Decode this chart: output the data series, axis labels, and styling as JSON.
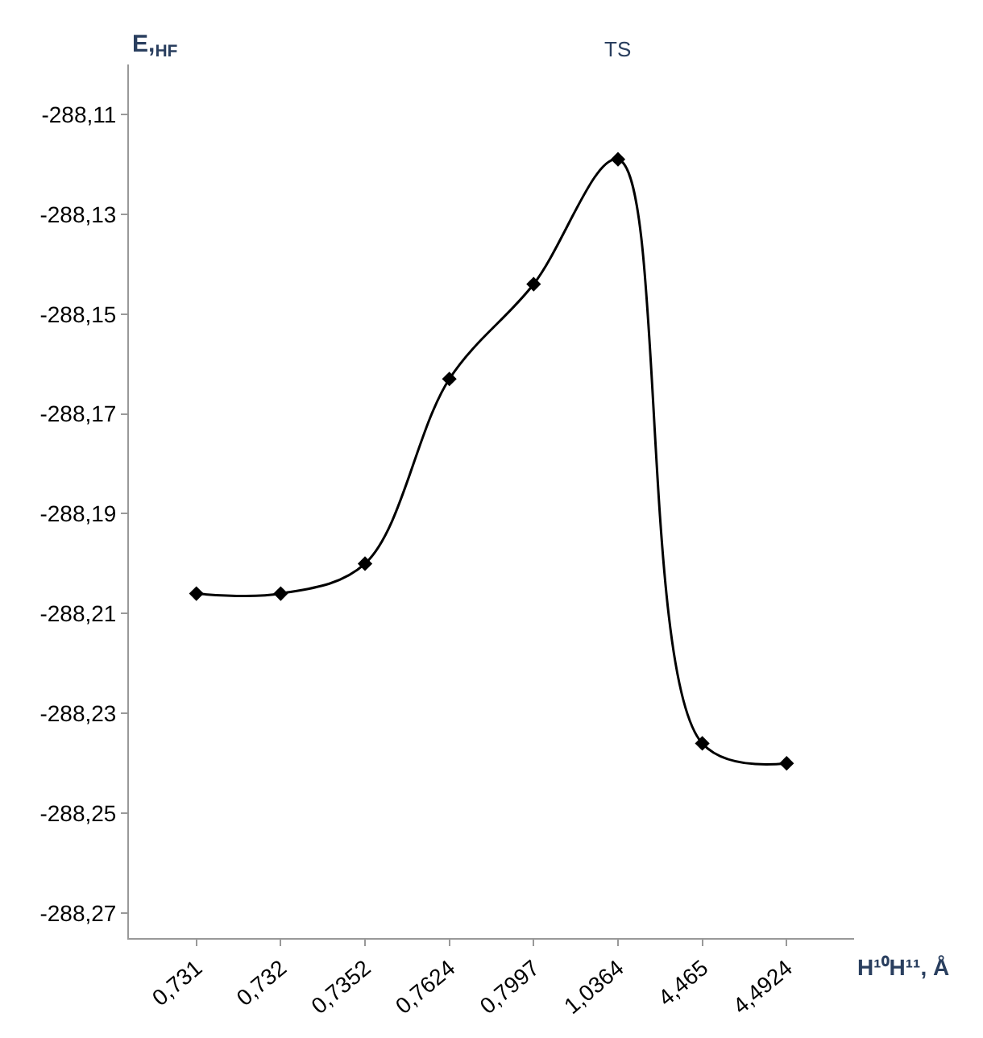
{
  "chart_data": {
    "type": "line",
    "ylabel": "E,$_{HF}$",
    "xlabel": "H¹⁰H¹¹, Å",
    "categories": [
      "0,731",
      "0,732",
      "0,7352",
      "0,7624",
      "0,7997",
      "1,0364",
      "4,465",
      "4,4924"
    ],
    "series": [
      {
        "color": "#000000",
        "values": [
          -288.206,
          -288.206,
          -288.2,
          -288.163,
          -288.144,
          -288.119,
          -288.236,
          -288.24
        ]
      }
    ],
    "annotations": [
      "TS"
    ],
    "ylim": [
      -288.275,
      -288.1
    ],
    "yticks": [
      {
        "value": -288.27,
        "label": "-288,27"
      },
      {
        "value": -288.25,
        "label": "-288,25"
      },
      {
        "value": -288.23,
        "label": "-288,23"
      },
      {
        "value": -288.21,
        "label": "-288,21"
      },
      {
        "value": -288.19,
        "label": "-288,19"
      },
      {
        "value": -288.17,
        "label": "-288,17"
      },
      {
        "value": -288.15,
        "label": "-288,15"
      },
      {
        "value": -288.13,
        "label": "-288,13"
      },
      {
        "value": -288.11,
        "label": "-288,11"
      }
    ],
    "legend": false,
    "marker": "diamond",
    "line_style": "solid"
  }
}
